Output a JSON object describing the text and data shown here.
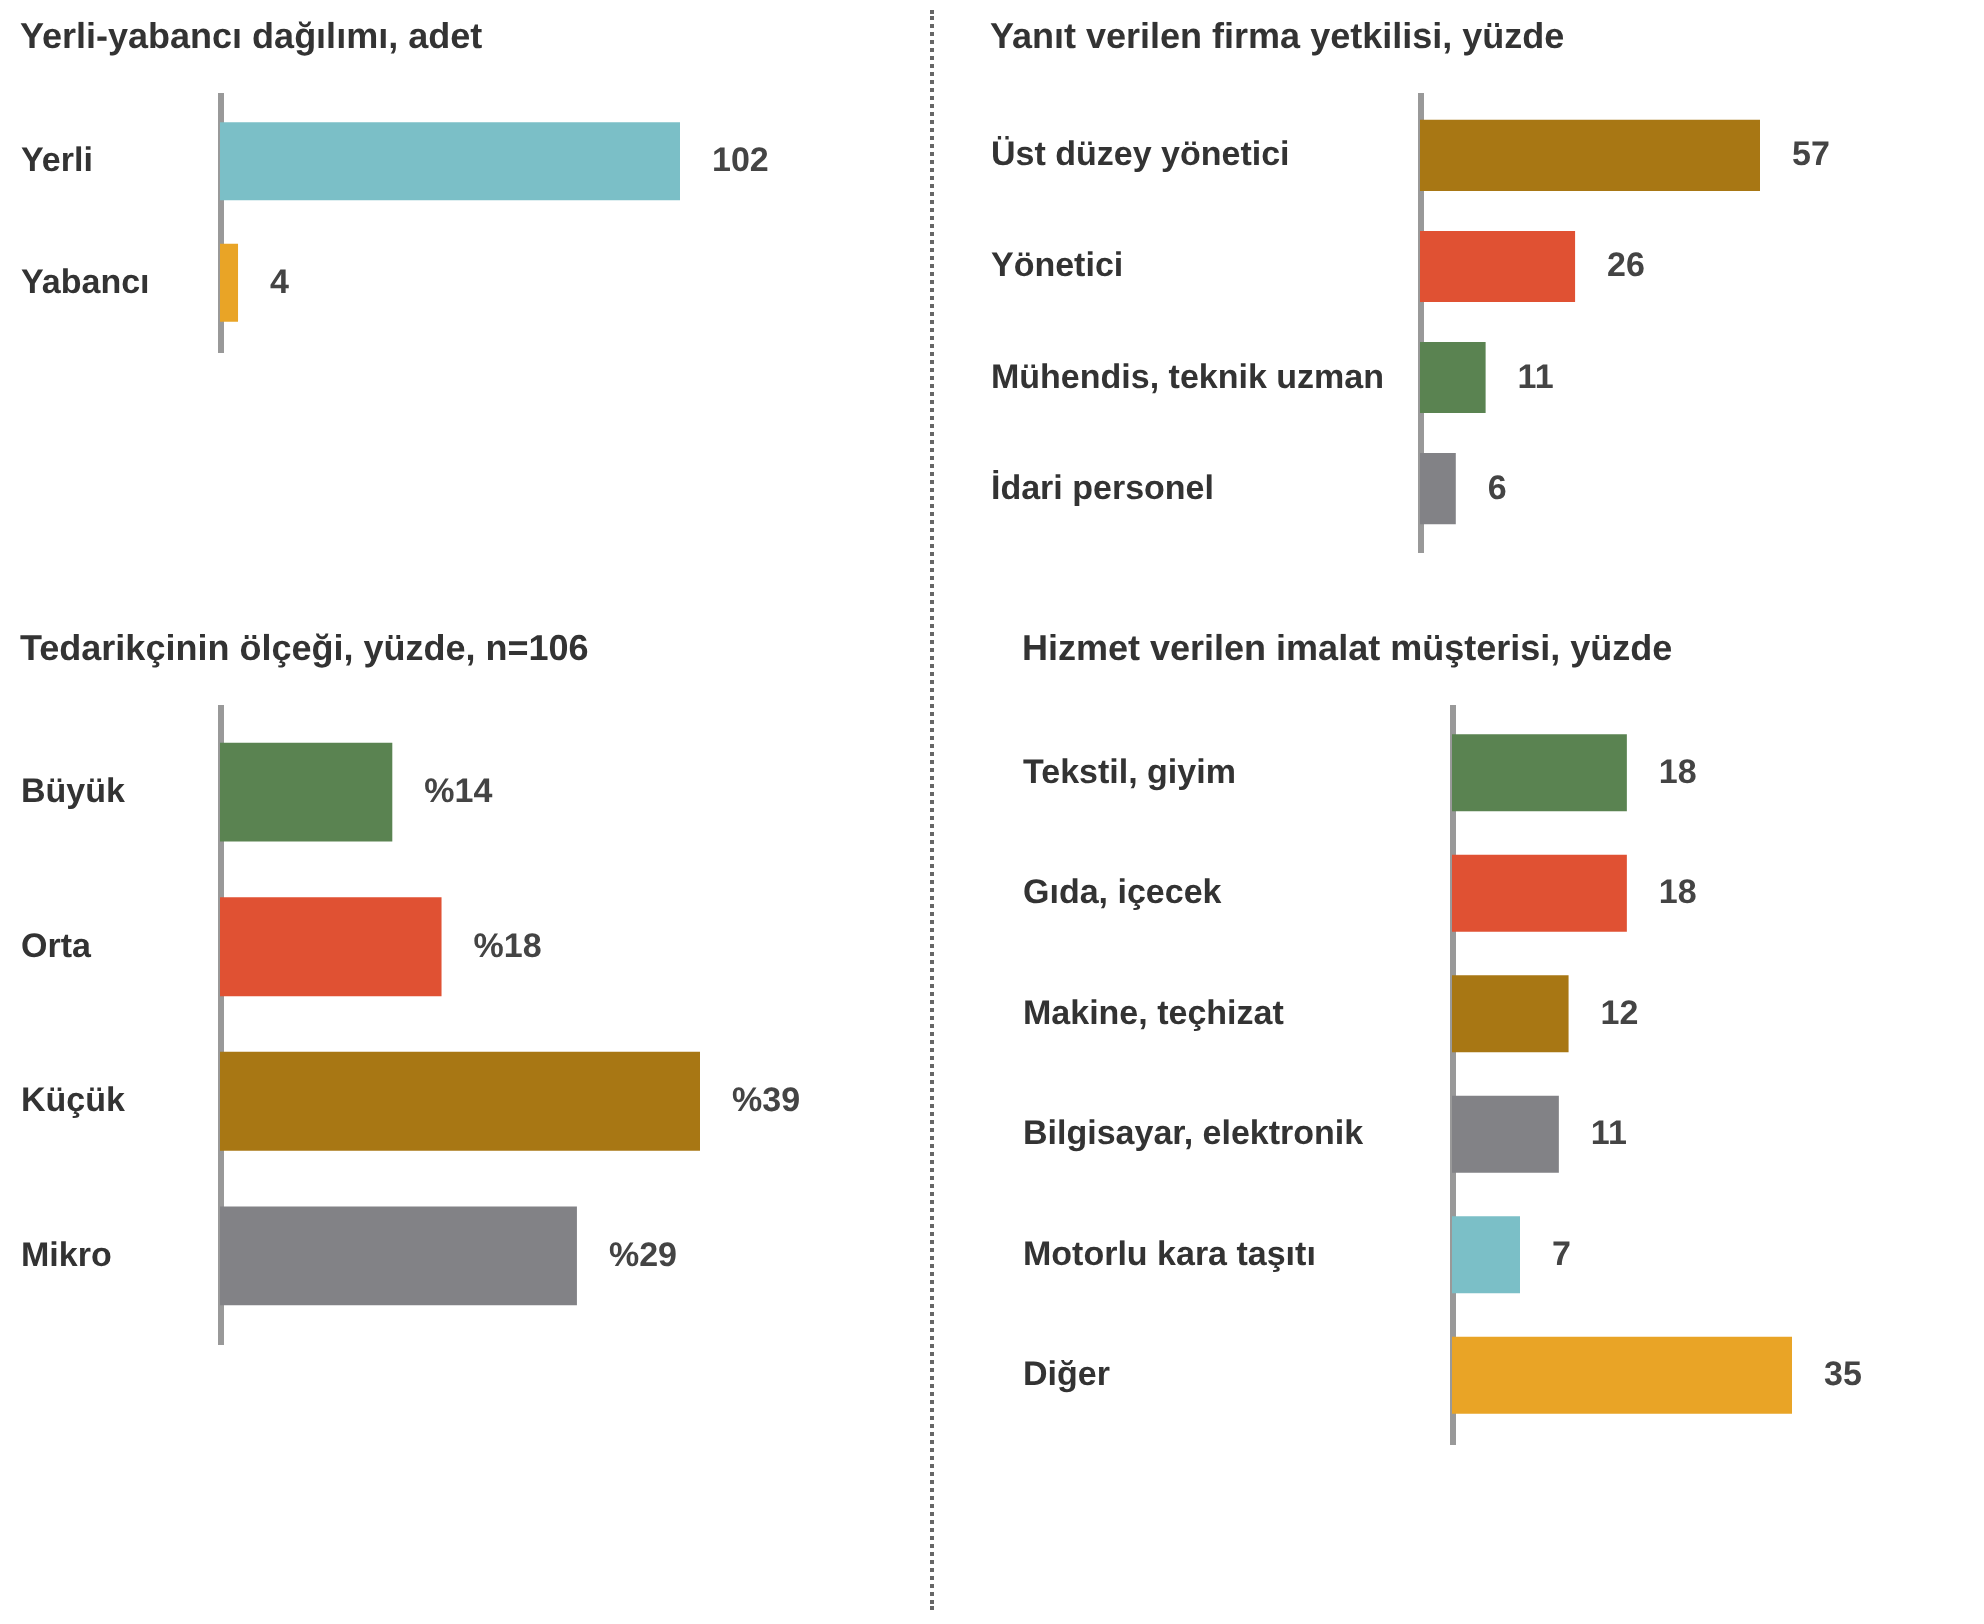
{
  "chart_data": [
    {
      "type": "bar",
      "orientation": "horizontal",
      "title": "Yerli-yabancı dağılımı, adet",
      "categories": [
        "Yerli",
        "Yabancı"
      ],
      "values": [
        102,
        4
      ],
      "colors": [
        "#7bbfc7",
        "#e9a426"
      ],
      "data_labels": true
    },
    {
      "type": "bar",
      "orientation": "horizontal",
      "title": "Yanıt verilen firma yetkilisi, yüzde",
      "categories": [
        "Üst düzey yönetici",
        "Yönetici",
        "Mühendis, teknik uzman",
        "İdari personel"
      ],
      "values": [
        57,
        26,
        11,
        6
      ],
      "colors": [
        "#a87714",
        "#e05133",
        "#5a8351",
        "#828286"
      ],
      "data_labels": true
    },
    {
      "type": "bar",
      "orientation": "horizontal",
      "title": "Tedarikçinin ölçeği, yüzde, n=106",
      "categories": [
        "Büyük",
        "Orta",
        "Küçük",
        "Mikro"
      ],
      "values": [
        14,
        18,
        39,
        29
      ],
      "colors": [
        "#5a8351",
        "#e05133",
        "#a87714",
        "#828286"
      ],
      "value_labels": [
        "%14",
        "%18",
        "%39",
        "%29"
      ]
    },
    {
      "type": "bar",
      "orientation": "horizontal",
      "title": "Hizmet verilen imalat müşterisi, yüzde",
      "categories": [
        "Tekstil, giyim",
        "Gıda, içecek",
        "Makine, teçhizat",
        "Bilgisayar, elektronik",
        "Motorlu kara taşıtı",
        "Diğer"
      ],
      "values": [
        18,
        18,
        12,
        11,
        7,
        35
      ],
      "colors": [
        "#5a8351",
        "#e05133",
        "#a87714",
        "#828286",
        "#7bbfc7",
        "#e9a426"
      ],
      "data_labels": true
    }
  ]
}
